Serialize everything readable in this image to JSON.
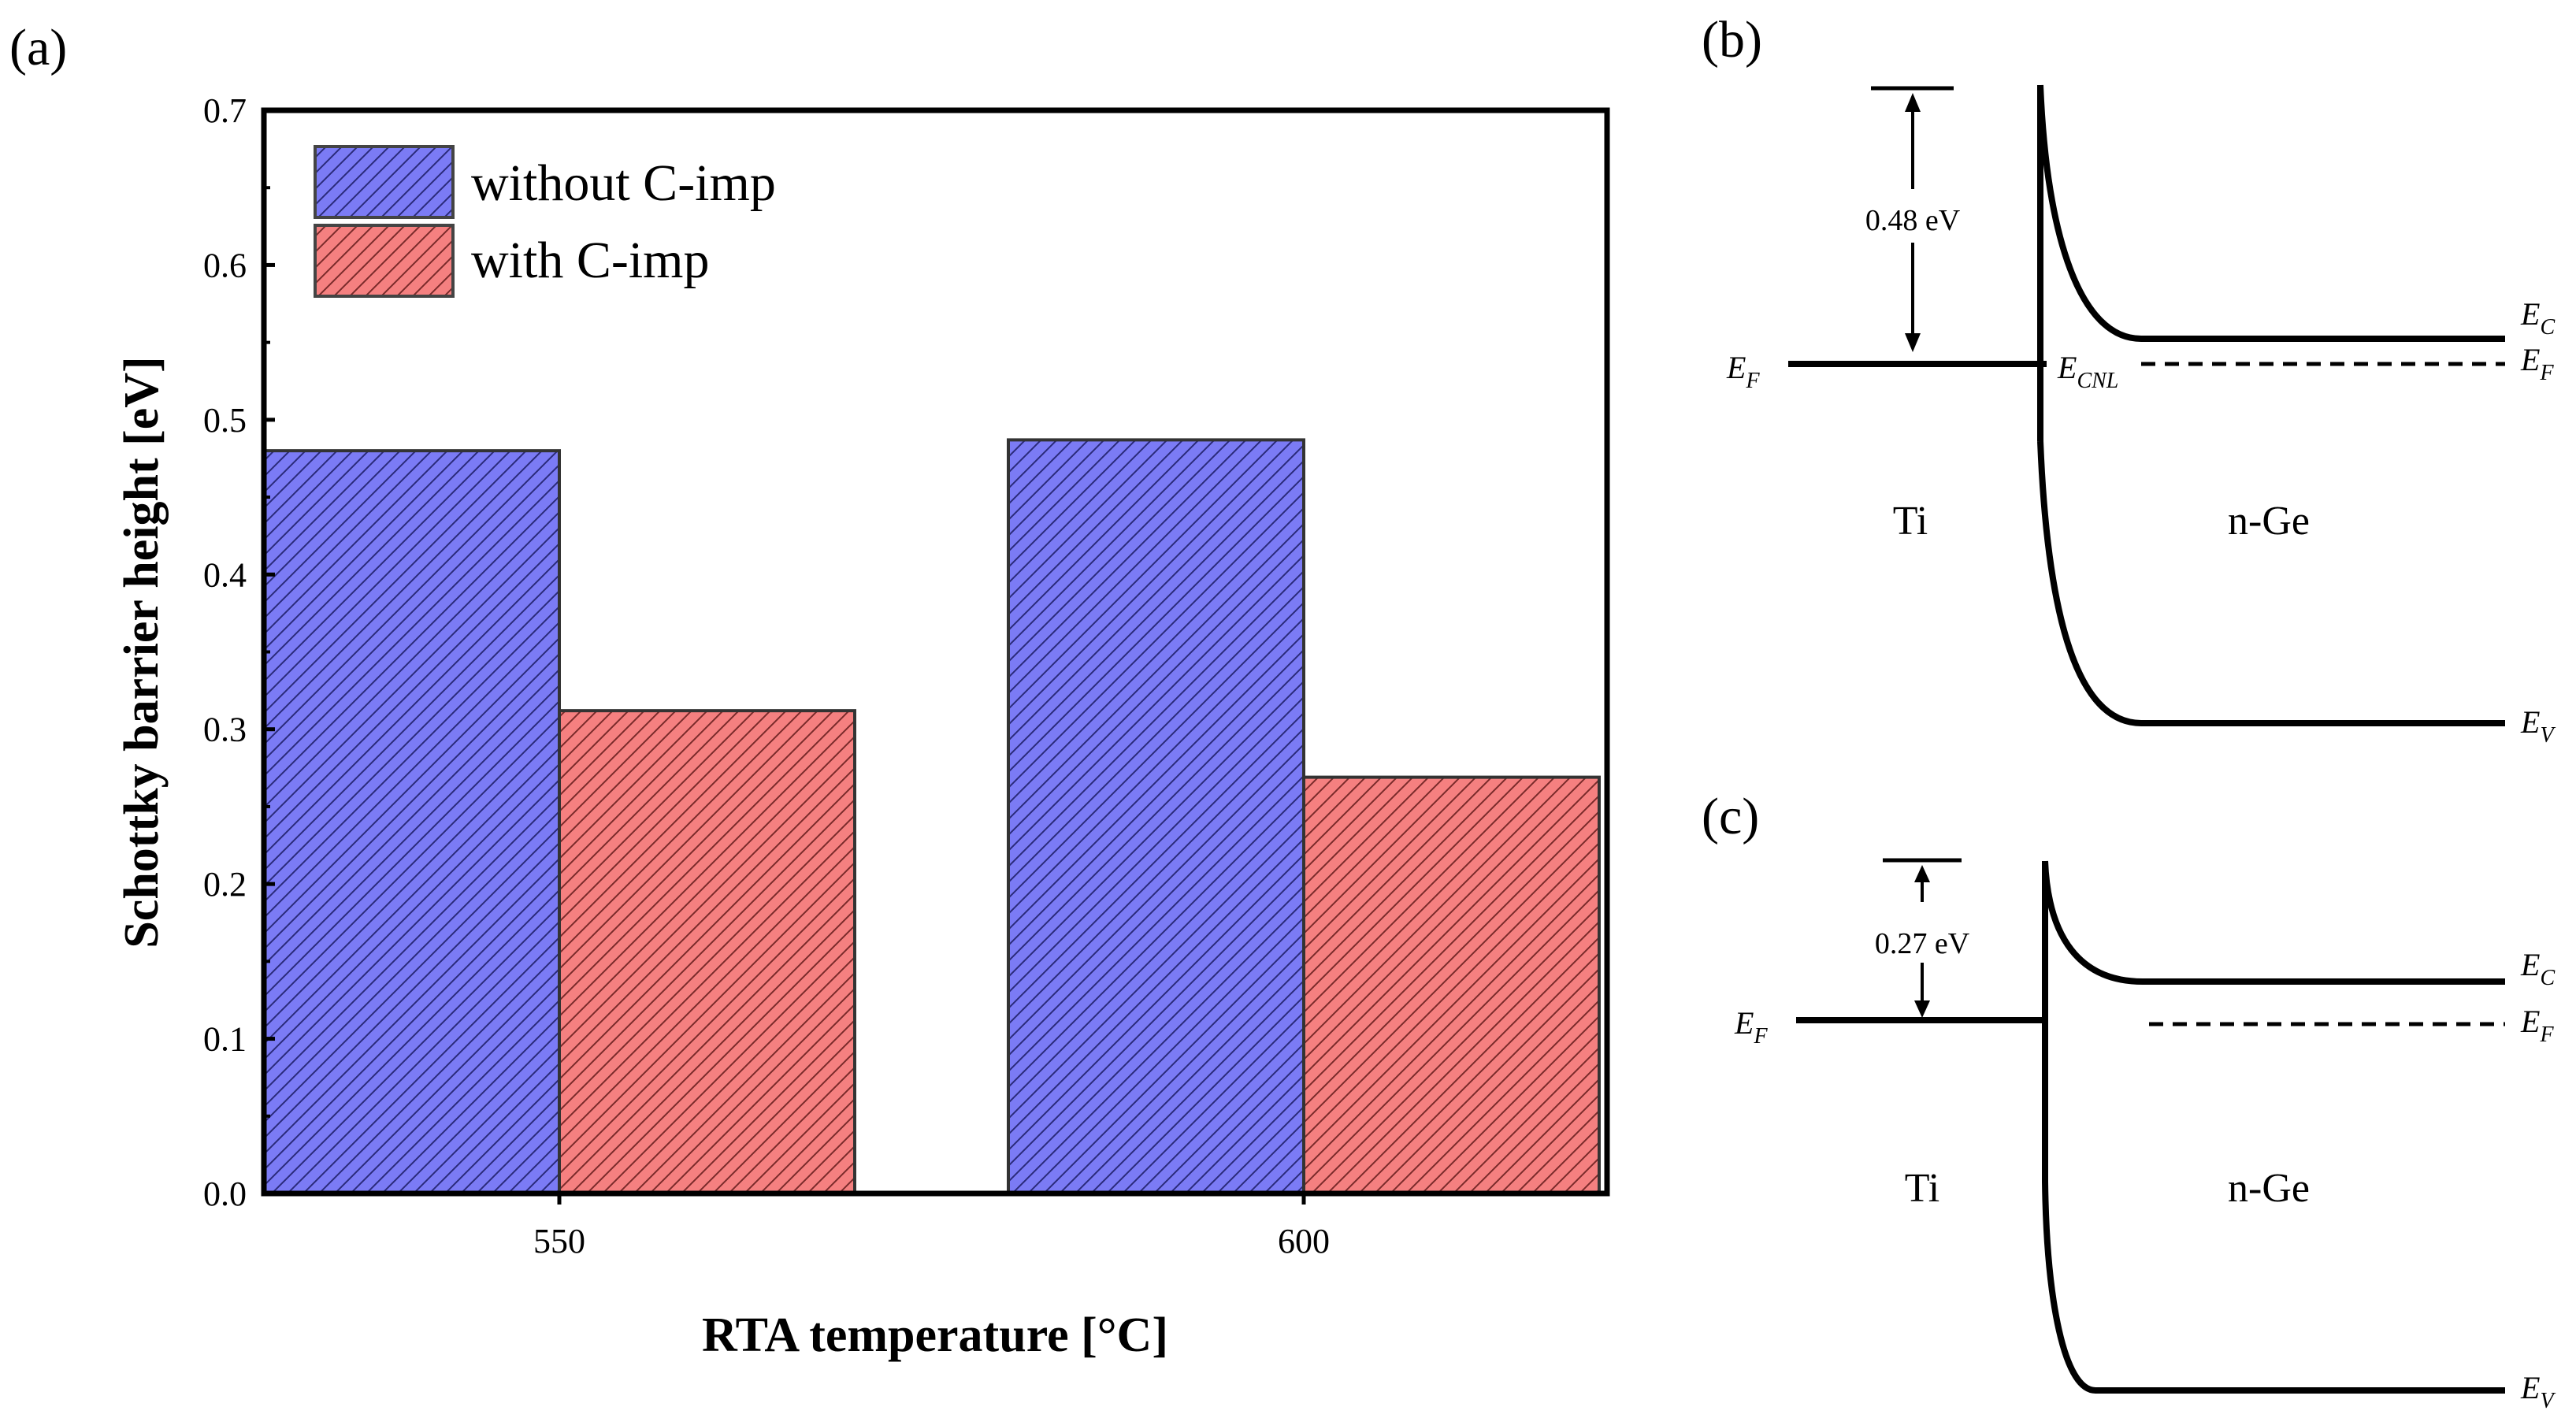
{
  "chart_data": {
    "type": "bar",
    "panel_label": "(a)",
    "title": "",
    "xlabel": "RTA temperature [°C]",
    "ylabel": "Schottky barrier height [eV]",
    "categories": [
      "550",
      "600"
    ],
    "series": [
      {
        "name": "without C-imp",
        "values": [
          0.48,
          0.487
        ],
        "color": "#7b7bf5",
        "hatch": "diagonal"
      },
      {
        "name": "with C-imp",
        "values": [
          0.312,
          0.269
        ],
        "color": "#f58080",
        "hatch": "diagonal"
      }
    ],
    "ylim": [
      0,
      0.7
    ],
    "yticks": [
      "0.0",
      "0.1",
      "0.2",
      "0.3",
      "0.4",
      "0.5",
      "0.6",
      "0.7"
    ],
    "legend_position": "top-left",
    "grid": false
  },
  "diagram_b": {
    "panel_label": "(b)",
    "barrier_label": "0.48 eV",
    "metal_label": "Ti",
    "semiconductor_label": "n-Ge",
    "ef_left": {
      "main": "E",
      "sub": "F"
    },
    "cnl": {
      "main": "E",
      "sub": "CNL"
    },
    "ec": {
      "main": "E",
      "sub": "C"
    },
    "ef_right": {
      "main": "E",
      "sub": "F"
    },
    "ev": {
      "main": "E",
      "sub": "V"
    }
  },
  "diagram_c": {
    "panel_label": "(c)",
    "barrier_label": "0.27 eV",
    "metal_label": "Ti",
    "semiconductor_label": "n-Ge",
    "ef_left": {
      "main": "E",
      "sub": "F"
    },
    "ec": {
      "main": "E",
      "sub": "C"
    },
    "ef_right": {
      "main": "E",
      "sub": "F"
    },
    "ev": {
      "main": "E",
      "sub": "V"
    }
  }
}
